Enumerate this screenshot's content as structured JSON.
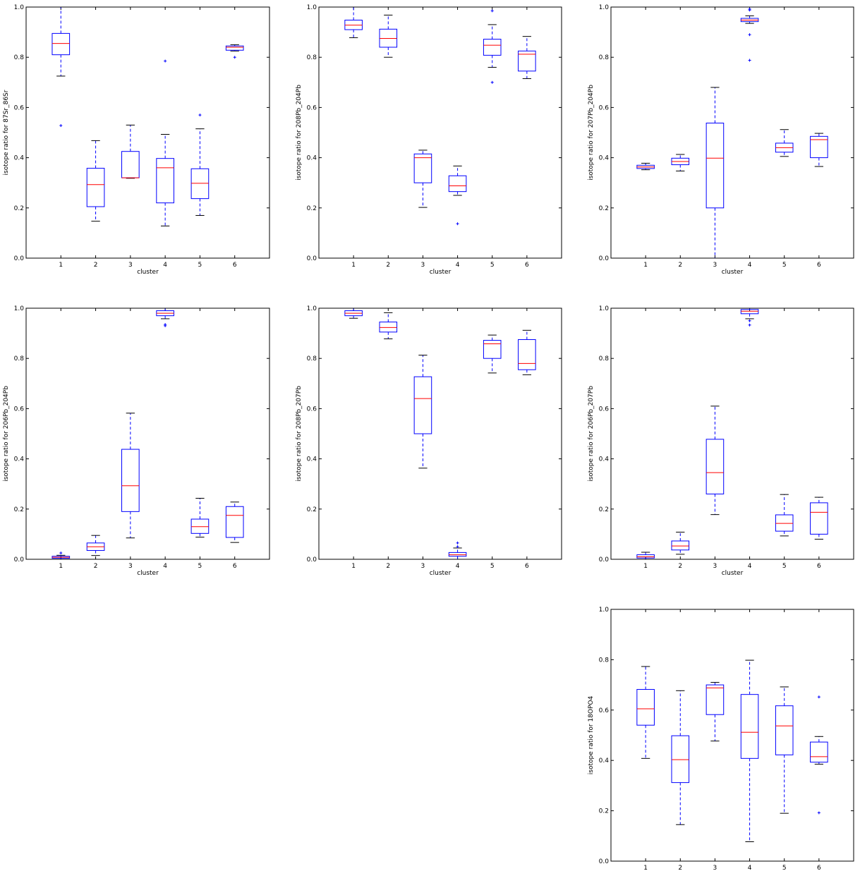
{
  "figure": {
    "colors": {
      "box": "#0000ff",
      "median": "#ff0000",
      "whisker_cap": "#000000",
      "flier": "#0000ff",
      "frame": "#000000"
    }
  },
  "chart_data": [
    {
      "type": "box",
      "xlabel": "cluster",
      "ylabel": "isotope ratio for 87Sr_86Sr",
      "categories": [
        "1",
        "2",
        "3",
        "4",
        "5",
        "6"
      ],
      "ylim": [
        0,
        1
      ],
      "yticks": [
        "0.0",
        "0.2",
        "0.4",
        "0.6",
        "0.8",
        "1.0"
      ],
      "boxes": [
        {
          "whislo": 0.725,
          "q1": 0.81,
          "med": 0.855,
          "q3": 0.895,
          "whishi": 1.0,
          "fliers": [
            0.528
          ]
        },
        {
          "whislo": 0.147,
          "q1": 0.205,
          "med": 0.293,
          "q3": 0.358,
          "whishi": 0.468,
          "fliers": []
        },
        {
          "whislo": 0.318,
          "q1": 0.32,
          "med": 0.32,
          "q3": 0.425,
          "whishi": 0.53,
          "fliers": []
        },
        {
          "whislo": 0.128,
          "q1": 0.22,
          "med": 0.36,
          "q3": 0.397,
          "whishi": 0.493,
          "fliers": [
            0.785
          ]
        },
        {
          "whislo": 0.17,
          "q1": 0.237,
          "med": 0.298,
          "q3": 0.356,
          "whishi": 0.515,
          "fliers": [
            0.57
          ]
        },
        {
          "whislo": 0.825,
          "q1": 0.828,
          "med": 0.84,
          "q3": 0.845,
          "whishi": 0.85,
          "fliers": [
            0.8
          ]
        }
      ]
    },
    {
      "type": "box",
      "xlabel": "cluster",
      "ylabel": "isotope ratio for 208Pb_204Pb",
      "categories": [
        "1",
        "2",
        "3",
        "4",
        "5",
        "6"
      ],
      "ylim": [
        0,
        1
      ],
      "yticks": [
        "0.0",
        "0.2",
        "0.4",
        "0.6",
        "0.8",
        "1.0"
      ],
      "boxes": [
        {
          "whislo": 0.878,
          "q1": 0.91,
          "med": 0.928,
          "q3": 0.948,
          "whishi": 1.0,
          "fliers": []
        },
        {
          "whislo": 0.8,
          "q1": 0.84,
          "med": 0.875,
          "q3": 0.912,
          "whishi": 0.968,
          "fliers": []
        },
        {
          "whislo": 0.202,
          "q1": 0.3,
          "med": 0.4,
          "q3": 0.415,
          "whishi": 0.43,
          "fliers": []
        },
        {
          "whislo": 0.25,
          "q1": 0.265,
          "med": 0.288,
          "q3": 0.328,
          "whishi": 0.367,
          "fliers": [
            0.137
          ]
        },
        {
          "whislo": 0.76,
          "q1": 0.808,
          "med": 0.848,
          "q3": 0.872,
          "whishi": 0.93,
          "fliers": [
            0.985,
            0.7
          ]
        },
        {
          "whislo": 0.715,
          "q1": 0.745,
          "med": 0.812,
          "q3": 0.825,
          "whishi": 0.883,
          "fliers": []
        }
      ]
    },
    {
      "type": "box",
      "xlabel": "cluster",
      "ylabel": "isotope ratio for 207Pb_204Pb",
      "categories": [
        "1",
        "2",
        "3",
        "4",
        "5",
        "6"
      ],
      "ylim": [
        0,
        1
      ],
      "yticks": [
        "0.0",
        "0.2",
        "0.4",
        "0.6",
        "0.8",
        "1.0"
      ],
      "boxes": [
        {
          "whislo": 0.352,
          "q1": 0.357,
          "med": 0.363,
          "q3": 0.37,
          "whishi": 0.378,
          "fliers": []
        },
        {
          "whislo": 0.347,
          "q1": 0.372,
          "med": 0.385,
          "q3": 0.398,
          "whishi": 0.413,
          "fliers": []
        },
        {
          "whislo": 0.0,
          "q1": 0.2,
          "med": 0.398,
          "q3": 0.538,
          "whishi": 0.68,
          "fliers": []
        },
        {
          "whislo": 0.935,
          "q1": 0.942,
          "med": 0.948,
          "q3": 0.955,
          "whishi": 0.965,
          "fliers": [
            0.992,
            0.988,
            0.89,
            0.788
          ]
        },
        {
          "whislo": 0.405,
          "q1": 0.422,
          "med": 0.44,
          "q3": 0.458,
          "whishi": 0.512,
          "fliers": []
        },
        {
          "whislo": 0.365,
          "q1": 0.4,
          "med": 0.472,
          "q3": 0.485,
          "whishi": 0.497,
          "fliers": []
        }
      ]
    },
    {
      "type": "box",
      "xlabel": "cluster",
      "ylabel": "isotope ratio for 206Pb_204Pb",
      "categories": [
        "1",
        "2",
        "3",
        "4",
        "5",
        "6"
      ],
      "ylim": [
        0,
        1
      ],
      "yticks": [
        "0.0",
        "0.2",
        "0.4",
        "0.6",
        "0.8",
        "1.0"
      ],
      "boxes": [
        {
          "whislo": 0.0,
          "q1": 0.004,
          "med": 0.008,
          "q3": 0.012,
          "whishi": 0.016,
          "fliers": [
            0.025
          ]
        },
        {
          "whislo": 0.015,
          "q1": 0.035,
          "med": 0.05,
          "q3": 0.065,
          "whishi": 0.095,
          "fliers": []
        },
        {
          "whislo": 0.085,
          "q1": 0.19,
          "med": 0.293,
          "q3": 0.438,
          "whishi": 0.582,
          "fliers": []
        },
        {
          "whislo": 0.958,
          "q1": 0.97,
          "med": 0.98,
          "q3": 0.99,
          "whishi": 1.0,
          "fliers": [
            0.935,
            0.93
          ]
        },
        {
          "whislo": 0.088,
          "q1": 0.103,
          "med": 0.13,
          "q3": 0.16,
          "whishi": 0.243,
          "fliers": []
        },
        {
          "whislo": 0.067,
          "q1": 0.087,
          "med": 0.175,
          "q3": 0.21,
          "whishi": 0.228,
          "fliers": []
        }
      ]
    },
    {
      "type": "box",
      "xlabel": "cluster",
      "ylabel": "isotope ratio for 208Pb_207Pb",
      "categories": [
        "1",
        "2",
        "3",
        "4",
        "5",
        "6"
      ],
      "ylim": [
        0,
        1
      ],
      "yticks": [
        "0.0",
        "0.2",
        "0.4",
        "0.6",
        "0.8",
        "1.0"
      ],
      "boxes": [
        {
          "whislo": 0.96,
          "q1": 0.97,
          "med": 0.98,
          "q3": 0.99,
          "whishi": 1.0,
          "fliers": []
        },
        {
          "whislo": 0.878,
          "q1": 0.905,
          "med": 0.923,
          "q3": 0.945,
          "whishi": 0.982,
          "fliers": []
        },
        {
          "whislo": 0.363,
          "q1": 0.5,
          "med": 0.64,
          "q3": 0.727,
          "whishi": 0.813,
          "fliers": []
        },
        {
          "whislo": 0.0,
          "q1": 0.012,
          "med": 0.018,
          "q3": 0.027,
          "whishi": 0.045,
          "fliers": [
            0.065,
            0.05
          ]
        },
        {
          "whislo": 0.742,
          "q1": 0.8,
          "med": 0.858,
          "q3": 0.872,
          "whishi": 0.893,
          "fliers": []
        },
        {
          "whislo": 0.735,
          "q1": 0.755,
          "med": 0.78,
          "q3": 0.875,
          "whishi": 0.912,
          "fliers": []
        }
      ]
    },
    {
      "type": "box",
      "xlabel": "cluster",
      "ylabel": "isotope ratio for 206Pb_207Pb",
      "categories": [
        "1",
        "2",
        "3",
        "4",
        "5",
        "6"
      ],
      "ylim": [
        0,
        1
      ],
      "yticks": [
        "0.0",
        "0.2",
        "0.4",
        "0.6",
        "0.8",
        "1.0"
      ],
      "boxes": [
        {
          "whislo": 0.0,
          "q1": 0.005,
          "med": 0.01,
          "q3": 0.018,
          "whishi": 0.028,
          "fliers": []
        },
        {
          "whislo": 0.02,
          "q1": 0.037,
          "med": 0.053,
          "q3": 0.073,
          "whishi": 0.108,
          "fliers": []
        },
        {
          "whislo": 0.178,
          "q1": 0.26,
          "med": 0.345,
          "q3": 0.478,
          "whishi": 0.61,
          "fliers": []
        },
        {
          "whislo": 0.958,
          "q1": 0.978,
          "med": 0.988,
          "q3": 0.995,
          "whishi": 1.0,
          "fliers": [
            0.95,
            0.933
          ]
        },
        {
          "whislo": 0.093,
          "q1": 0.112,
          "med": 0.143,
          "q3": 0.177,
          "whishi": 0.258,
          "fliers": []
        },
        {
          "whislo": 0.08,
          "q1": 0.1,
          "med": 0.187,
          "q3": 0.225,
          "whishi": 0.247,
          "fliers": []
        }
      ]
    },
    {
      "type": "box",
      "xlabel": "",
      "ylabel": "isotope ratio for 18OPO4",
      "categories": [
        "1",
        "2",
        "3",
        "4",
        "5",
        "6"
      ],
      "ylim": [
        0,
        1
      ],
      "yticks": [
        "0.0",
        "0.2",
        "0.4",
        "0.6",
        "0.8",
        "1.0"
      ],
      "boxes": [
        {
          "whislo": 0.408,
          "q1": 0.54,
          "med": 0.605,
          "q3": 0.682,
          "whishi": 0.773,
          "fliers": []
        },
        {
          "whislo": 0.145,
          "q1": 0.312,
          "med": 0.403,
          "q3": 0.498,
          "whishi": 0.677,
          "fliers": []
        },
        {
          "whislo": 0.477,
          "q1": 0.582,
          "med": 0.688,
          "q3": 0.7,
          "whishi": 0.71,
          "fliers": []
        },
        {
          "whislo": 0.077,
          "q1": 0.408,
          "med": 0.512,
          "q3": 0.662,
          "whishi": 0.798,
          "fliers": []
        },
        {
          "whislo": 0.19,
          "q1": 0.422,
          "med": 0.537,
          "q3": 0.617,
          "whishi": 0.692,
          "fliers": []
        },
        {
          "whislo": 0.385,
          "q1": 0.393,
          "med": 0.415,
          "q3": 0.473,
          "whishi": 0.495,
          "fliers": [
            0.652,
            0.192
          ]
        }
      ]
    }
  ]
}
